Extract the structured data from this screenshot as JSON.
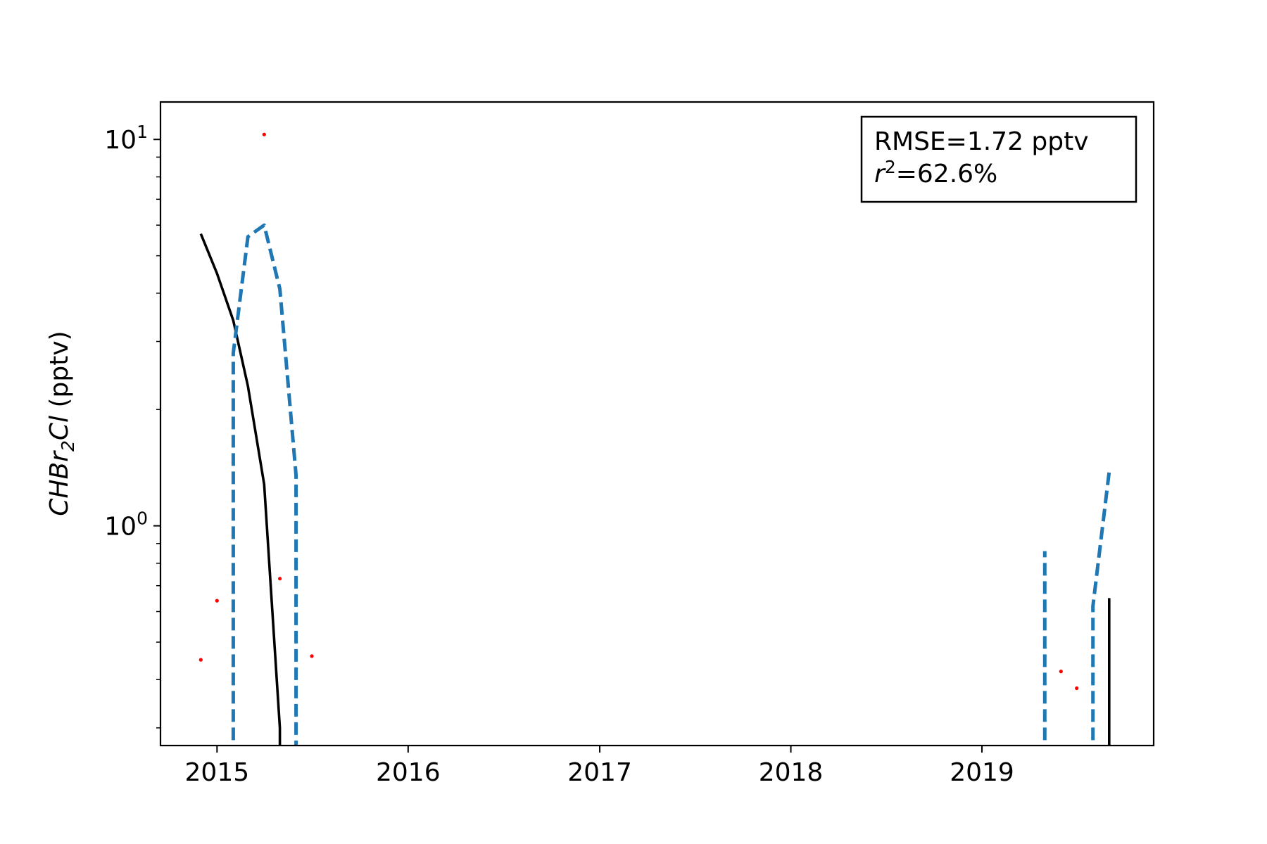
{
  "chart_data": {
    "type": "line",
    "ylabel": "CHBr2Cl (pptv)",
    "ylabel_parts": {
      "main": "CHBr",
      "sub": "2",
      "tail": "Cl",
      "unit": " (pptv)"
    },
    "y_scale": "log",
    "ylim": [
      0.27,
      12.5
    ],
    "y_ticks": [
      {
        "value": 1,
        "base": "10",
        "exp": "0"
      },
      {
        "value": 10,
        "base": "10",
        "exp": "1"
      }
    ],
    "xlim": [
      "2014-09-15",
      "2019-11-25"
    ],
    "x_ticks": [
      "2015",
      "2016",
      "2017",
      "2018",
      "2019"
    ],
    "x_tick_dates": [
      "2015-01-01",
      "2016-01-01",
      "2017-01-01",
      "2018-01-01",
      "2019-01-01"
    ],
    "grid": false,
    "annotation": {
      "line1": "RMSE=1.72 pptv",
      "line2_var": "r",
      "line2_sup": "2",
      "line2_rest": "=62.6%",
      "position": "top-right"
    },
    "series": [
      {
        "style": "solid",
        "color": "#000000",
        "segments": [
          [
            [
              "2014-12-01",
              5.7
            ],
            [
              "2015-01-01",
              4.5
            ],
            [
              "2015-02-01",
              3.4
            ],
            [
              "2015-03-01",
              2.3
            ],
            [
              "2015-04-01",
              1.28
            ],
            [
              "2015-05-01",
              0.3
            ],
            [
              "2015-05-01",
              0.25
            ]
          ],
          [
            [
              "2019-09-01",
              0.25
            ],
            [
              "2019-09-01",
              0.65
            ]
          ]
        ]
      },
      {
        "style": "dashed",
        "color": "#1f77b4",
        "segments": [
          [
            [
              "2015-02-01",
              0.25
            ],
            [
              "2015-02-01",
              2.8
            ],
            [
              "2015-03-01",
              5.6
            ],
            [
              "2015-04-01",
              6.0
            ],
            [
              "2015-05-01",
              4.1
            ],
            [
              "2015-06-01",
              1.35
            ],
            [
              "2015-06-01",
              0.25
            ]
          ],
          [
            [
              "2019-05-01",
              0.25
            ],
            [
              "2019-05-01",
              0.86
            ]
          ],
          [
            [
              "2019-08-01",
              0.25
            ],
            [
              "2019-08-01",
              0.62
            ],
            [
              "2019-09-01",
              1.38
            ]
          ]
        ]
      },
      {
        "style": "points",
        "color": "#ff0000",
        "points": [
          [
            "2014-12-01",
            0.45
          ],
          [
            "2015-01-01",
            0.64
          ],
          [
            "2015-04-01",
            10.3
          ],
          [
            "2015-05-01",
            0.73
          ],
          [
            "2015-07-01",
            0.46
          ],
          [
            "2019-06-01",
            0.42
          ],
          [
            "2019-07-01",
            0.38
          ]
        ]
      }
    ]
  }
}
